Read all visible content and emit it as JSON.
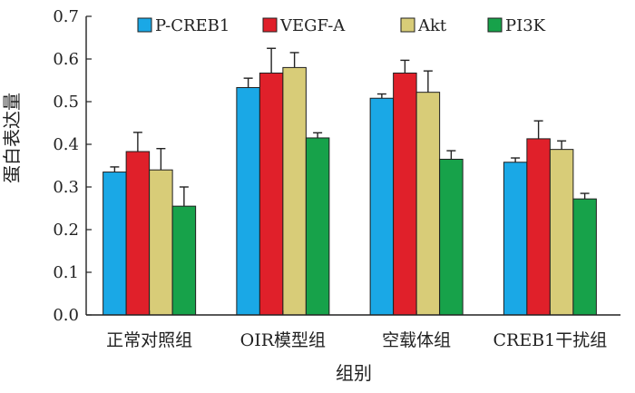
{
  "chart_data": {
    "type": "bar",
    "title": "",
    "xlabel": "组别",
    "ylabel": "蛋白表达量",
    "ylim": [
      0,
      0.7
    ],
    "yticks": [
      "0.0",
      "0.1",
      "0.2",
      "0.3",
      "0.4",
      "0.5",
      "0.6",
      "0.7"
    ],
    "categories": [
      "正常对照组",
      "OIR模型组",
      "空载体组",
      "CREB1干扰组"
    ],
    "legend_position": "top",
    "grid": false,
    "series": [
      {
        "name": "P-CREB1",
        "color": "#1aa8e6",
        "values": [
          0.335,
          0.533,
          0.508,
          0.358
        ],
        "errors": [
          0.012,
          0.022,
          0.01,
          0.01
        ]
      },
      {
        "name": "VEGF-A",
        "color": "#e0202a",
        "values": [
          0.383,
          0.567,
          0.567,
          0.413
        ],
        "errors": [
          0.045,
          0.058,
          0.03,
          0.042
        ]
      },
      {
        "name": "Akt",
        "color": "#d8cc78",
        "values": [
          0.34,
          0.58,
          0.522,
          0.388
        ],
        "errors": [
          0.05,
          0.035,
          0.05,
          0.02
        ]
      },
      {
        "name": "PI3K",
        "color": "#17a24a",
        "values": [
          0.255,
          0.415,
          0.365,
          0.272
        ],
        "errors": [
          0.045,
          0.012,
          0.02,
          0.013
        ]
      }
    ]
  }
}
